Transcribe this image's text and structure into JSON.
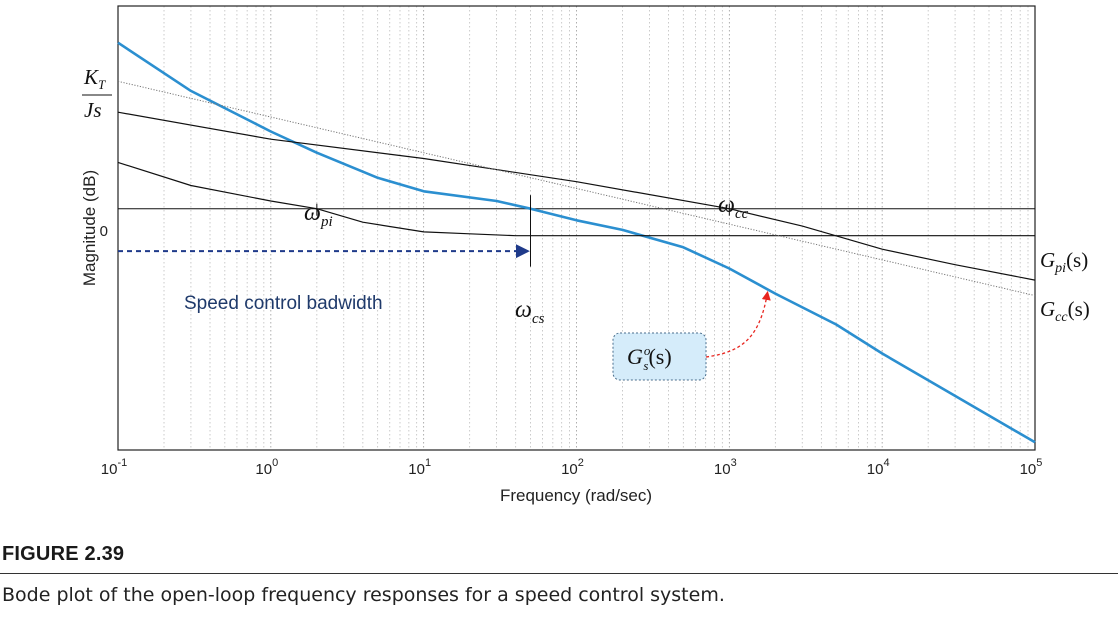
{
  "figure": {
    "label": "FIGURE 2.39",
    "caption": "Bode plot of the open-loop frequency responses for a speed control system."
  },
  "chart_data": {
    "type": "line",
    "title": "",
    "xlabel": "Frequency  (rad/sec)",
    "ylabel": "Magnitude (dB)",
    "x_scale": "log",
    "xlim": [
      0.1,
      100000
    ],
    "ylim": [
      -125,
      105
    ],
    "x_ticks": [
      {
        "base": "10",
        "exp": "-1",
        "value": 0.1
      },
      {
        "base": "10",
        "exp": "0",
        "value": 1
      },
      {
        "base": "10",
        "exp": "1",
        "value": 10
      },
      {
        "base": "10",
        "exp": "2",
        "value": 100
      },
      {
        "base": "10",
        "exp": "3",
        "value": 1000
      },
      {
        "base": "10",
        "exp": "4",
        "value": 10000
      },
      {
        "base": "10",
        "exp": "5",
        "value": 100000
      }
    ],
    "y_ticks": [
      {
        "label": "0",
        "value": 0
      }
    ],
    "grid": {
      "x_minor": true,
      "x_major": true,
      "y": false
    },
    "series": [
      {
        "key": "Gso",
        "color": "#2b8fd0",
        "x": [
          0.1,
          0.3,
          1,
          2,
          5,
          10,
          30,
          50,
          100,
          200,
          500,
          1000,
          2000,
          5000,
          10000,
          30000,
          100000
        ],
        "y": [
          86,
          61,
          40,
          29,
          16,
          9,
          4,
          0,
          -6,
          -11,
          -20,
          -31,
          -44,
          -60,
          -75,
          -97,
          -121
        ]
      },
      {
        "key": "Gpi",
        "color": "#111111",
        "x": [
          0.1,
          0.3,
          1,
          2,
          4,
          10,
          20,
          40,
          100000
        ],
        "y": [
          24,
          12,
          4,
          0,
          -7,
          -12,
          -13,
          -14,
          -14
        ]
      },
      {
        "key": "Gcc",
        "color": "#111111",
        "x": [
          0.1,
          1,
          10,
          100,
          1000,
          3000,
          10000,
          30000,
          100000
        ],
        "y": [
          50,
          36,
          26,
          14,
          0,
          -9,
          -21,
          -29,
          -37
        ]
      },
      {
        "key": "KTJs",
        "color": "#777777",
        "dotted": true,
        "x": [
          0.1,
          100000
        ],
        "y": [
          66,
          -45
        ]
      }
    ],
    "annotations": {
      "kt_num": "K",
      "kt_num_sub": "T",
      "kt_den": "Js",
      "w_pi": "ω",
      "w_pi_sub": "pi",
      "w_pi_x": 2,
      "w_cc": "ω",
      "w_cc_sub": "cc",
      "w_cc_x": 1000,
      "w_cs": "ω",
      "w_cs_sub": "cs",
      "w_cs_x": 50,
      "g_pi": "G",
      "g_pi_sub": "pi",
      "g_pi_arg": "(s)",
      "g_cc": "G",
      "g_cc_sub": "cc",
      "g_cc_arg": "(s)",
      "g_so": "G",
      "g_so_sup": "o",
      "g_so_sub": "s",
      "g_so_arg": "(s)",
      "bandwidth": "Speed control badwidth",
      "bandwidth_y": -22,
      "g_so_target_x": 1700
    }
  }
}
